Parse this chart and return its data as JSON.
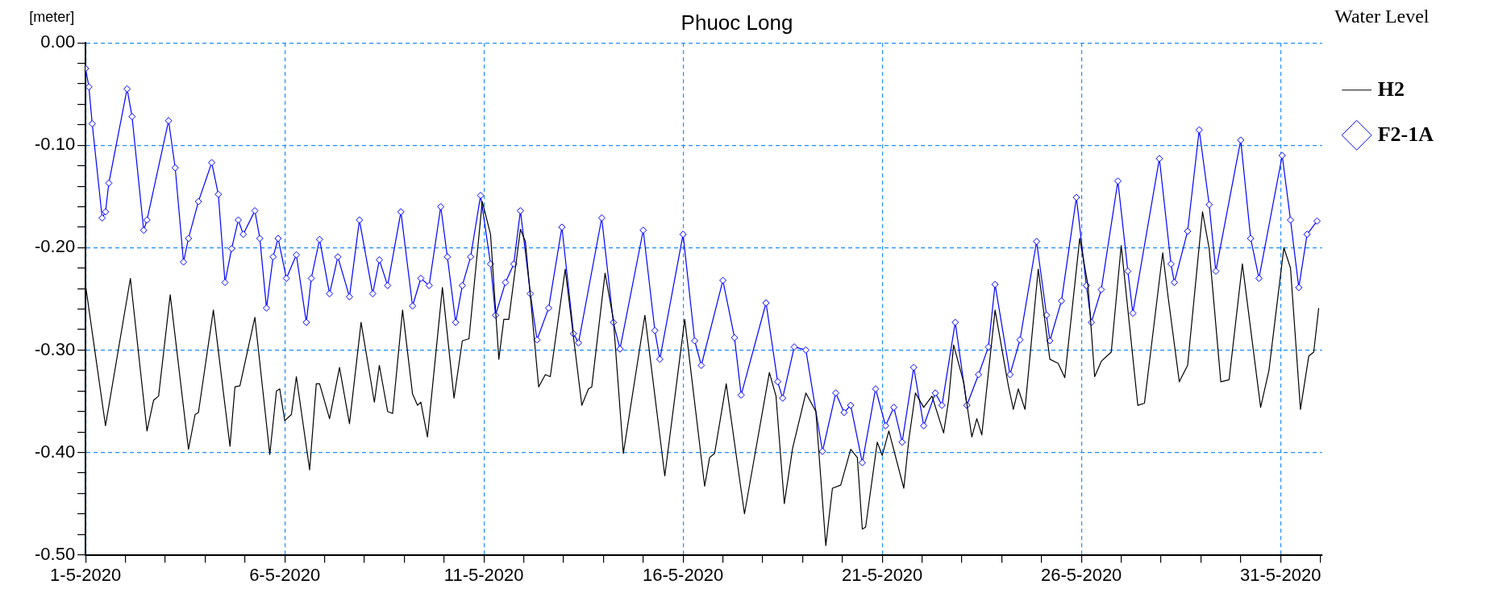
{
  "chart_data": {
    "type": "line",
    "title": "Phuoc Long",
    "ylabel": "[meter]",
    "legend_title": "Water Level",
    "legend": "right",
    "grid": true,
    "xlim": [
      "2020-05-01T00:00",
      "2020-06-01T01:00"
    ],
    "xticks": [
      {
        "value": "2020-05-01T00:00",
        "label": "1-5-2020"
      },
      {
        "value": "2020-05-02T00:00",
        "label": null
      },
      {
        "value": "2020-05-03T00:00",
        "label": null
      },
      {
        "value": "2020-05-04T00:00",
        "label": null
      },
      {
        "value": "2020-05-05T00:00",
        "label": null
      },
      {
        "value": "2020-05-06T00:00",
        "label": "6-5-2020"
      },
      {
        "value": "2020-05-07T00:00",
        "label": null
      },
      {
        "value": "2020-05-08T00:00",
        "label": null
      },
      {
        "value": "2020-05-09T00:00",
        "label": null
      },
      {
        "value": "2020-05-10T00:00",
        "label": null
      },
      {
        "value": "2020-05-11T00:00",
        "label": "11-5-2020"
      },
      {
        "value": "2020-05-12T00:00",
        "label": null
      },
      {
        "value": "2020-05-13T00:00",
        "label": null
      },
      {
        "value": "2020-05-14T00:00",
        "label": null
      },
      {
        "value": "2020-05-15T00:00",
        "label": null
      },
      {
        "value": "2020-05-16T00:00",
        "label": "16-5-2020"
      },
      {
        "value": "2020-05-17T00:00",
        "label": null
      },
      {
        "value": "2020-05-18T00:00",
        "label": null
      },
      {
        "value": "2020-05-19T00:00",
        "label": null
      },
      {
        "value": "2020-05-20T00:00",
        "label": null
      },
      {
        "value": "2020-05-21T00:00",
        "label": "21-5-2020"
      },
      {
        "value": "2020-05-22T00:00",
        "label": null
      },
      {
        "value": "2020-05-23T00:00",
        "label": null
      },
      {
        "value": "2020-05-24T00:00",
        "label": null
      },
      {
        "value": "2020-05-25T00:00",
        "label": null
      },
      {
        "value": "2020-05-26T00:00",
        "label": "26-5-2020"
      },
      {
        "value": "2020-05-27T00:00",
        "label": null
      },
      {
        "value": "2020-05-28T00:00",
        "label": null
      },
      {
        "value": "2020-05-29T00:00",
        "label": null
      },
      {
        "value": "2020-05-30T00:00",
        "label": null
      },
      {
        "value": "2020-05-31T00:00",
        "label": "31-5-2020"
      },
      {
        "value": "2020-06-01T00:00",
        "label": null
      }
    ],
    "ylim": [
      -0.5,
      0.0
    ],
    "yticks": [
      {
        "value": 0.0,
        "label": "0.00"
      },
      {
        "value": -0.02,
        "label": null
      },
      {
        "value": -0.04,
        "label": null
      },
      {
        "value": -0.06,
        "label": null
      },
      {
        "value": -0.08,
        "label": null
      },
      {
        "value": -0.1,
        "label": "-0.10"
      },
      {
        "value": -0.12,
        "label": null
      },
      {
        "value": -0.14,
        "label": null
      },
      {
        "value": -0.16,
        "label": null
      },
      {
        "value": -0.18,
        "label": null
      },
      {
        "value": -0.2,
        "label": "-0.20"
      },
      {
        "value": -0.22,
        "label": null
      },
      {
        "value": -0.24,
        "label": null
      },
      {
        "value": -0.26,
        "label": null
      },
      {
        "value": -0.28,
        "label": null
      },
      {
        "value": -0.3,
        "label": "-0.30"
      },
      {
        "value": -0.32,
        "label": null
      },
      {
        "value": -0.34,
        "label": null
      },
      {
        "value": -0.36,
        "label": null
      },
      {
        "value": -0.38,
        "label": null
      },
      {
        "value": -0.4,
        "label": "-0.40"
      },
      {
        "value": -0.42,
        "label": null
      },
      {
        "value": -0.44,
        "label": null
      },
      {
        "value": -0.46,
        "label": null
      },
      {
        "value": -0.48,
        "label": null
      },
      {
        "value": -0.5,
        "label": "-0.50"
      }
    ],
    "series": [
      {
        "name": "H2",
        "color": "#000000",
        "marker": "none",
        "x": [
          "2020-05-01T00:00",
          "2020-05-01T12:00",
          "2020-05-02T03:00",
          "2020-05-02T13:00",
          "2020-05-02T17:00",
          "2020-05-02T20:00",
          "2020-05-03T03:00",
          "2020-05-03T14:00",
          "2020-05-03T18:00",
          "2020-05-03T20:00",
          "2020-05-04T05:00",
          "2020-05-04T15:00",
          "2020-05-04T18:00",
          "2020-05-04T21:00",
          "2020-05-05T06:00",
          "2020-05-05T15:00",
          "2020-05-05T19:00",
          "2020-05-05T21:00",
          "2020-05-06T00:00",
          "2020-05-06T04:00",
          "2020-05-06T07:00",
          "2020-05-06T15:00",
          "2020-05-06T19:00",
          "2020-05-06T21:00",
          "2020-05-07T03:00",
          "2020-05-07T09:00",
          "2020-05-07T15:00",
          "2020-05-07T22:00",
          "2020-05-08T06:00",
          "2020-05-08T09:00",
          "2020-05-08T14:00",
          "2020-05-08T17:00",
          "2020-05-08T23:00",
          "2020-05-09T05:00",
          "2020-05-09T08:00",
          "2020-05-09T10:00",
          "2020-05-09T14:00",
          "2020-05-09T23:00",
          "2020-05-10T06:00",
          "2020-05-10T11:00",
          "2020-05-10T15:00",
          "2020-05-10T23:00",
          "2020-05-11T04:00",
          "2020-05-11T09:00",
          "2020-05-11T12:00",
          "2020-05-11T15:00",
          "2020-05-11T22:00",
          "2020-05-12T01:00",
          "2020-05-12T09:00",
          "2020-05-12T13:00",
          "2020-05-12T16:00",
          "2020-05-13T01:00",
          "2020-05-13T11:00",
          "2020-05-13T15:00",
          "2020-05-13T17:00",
          "2020-05-14T01:00",
          "2020-05-14T06:00",
          "2020-05-14T12:00",
          "2020-05-15T01:00",
          "2020-05-15T13:00",
          "2020-05-16T01:00",
          "2020-05-16T13:00",
          "2020-05-16T16:00",
          "2020-05-16T19:00",
          "2020-05-17T02:00",
          "2020-05-17T13:00",
          "2020-05-18T04:00",
          "2020-05-18T08:00",
          "2020-05-18T13:00",
          "2020-05-18T18:00",
          "2020-05-19T02:00",
          "2020-05-19T08:00",
          "2020-05-19T14:00",
          "2020-05-19T18:00",
          "2020-05-19T23:00",
          "2020-05-20T05:00",
          "2020-05-20T09:00",
          "2020-05-20T12:00",
          "2020-05-20T14:00",
          "2020-05-20T21:00",
          "2020-05-21T00:00",
          "2020-05-21T04:00",
          "2020-05-21T13:00",
          "2020-05-21T16:00",
          "2020-05-21T20:00",
          "2020-05-22T01:00",
          "2020-05-22T06:00",
          "2020-05-22T13:00",
          "2020-05-22T16:00",
          "2020-05-22T19:00",
          "2020-05-23T01:00",
          "2020-05-23T06:00",
          "2020-05-23T09:00",
          "2020-05-23T12:00",
          "2020-05-23T20:00",
          "2020-05-24T04:00",
          "2020-05-24T07:00",
          "2020-05-24T10:00",
          "2020-05-24T14:00",
          "2020-05-24T22:00",
          "2020-05-25T05:00",
          "2020-05-25T10:00",
          "2020-05-25T14:00",
          "2020-05-25T23:00",
          "2020-05-26T04:00",
          "2020-05-26T08:00",
          "2020-05-26T12:00",
          "2020-05-26T18:00",
          "2020-05-27T00:00",
          "2020-05-27T10:00",
          "2020-05-27T14:00",
          "2020-05-28T01:00",
          "2020-05-28T04:00",
          "2020-05-28T11:00",
          "2020-05-28T16:00",
          "2020-05-29T01:00",
          "2020-05-29T05:00",
          "2020-05-29T12:00",
          "2020-05-29T17:00",
          "2020-05-30T01:00",
          "2020-05-30T12:00",
          "2020-05-30T17:00",
          "2020-05-31T02:00",
          "2020-05-31T06:00",
          "2020-05-31T12:00",
          "2020-05-31T17:00",
          "2020-05-31T20:00",
          "2020-05-31T23:00"
        ],
        "values": [
          -0.237,
          -0.374,
          -0.23,
          -0.379,
          -0.349,
          -0.345,
          -0.246,
          -0.397,
          -0.363,
          -0.361,
          -0.261,
          -0.394,
          -0.336,
          -0.335,
          -0.268,
          -0.402,
          -0.34,
          -0.338,
          -0.369,
          -0.363,
          -0.326,
          -0.417,
          -0.333,
          -0.333,
          -0.367,
          -0.317,
          -0.372,
          -0.273,
          -0.351,
          -0.315,
          -0.36,
          -0.362,
          -0.261,
          -0.343,
          -0.354,
          -0.351,
          -0.385,
          -0.239,
          -0.347,
          -0.291,
          -0.289,
          -0.155,
          -0.187,
          -0.309,
          -0.27,
          -0.27,
          -0.182,
          -0.194,
          -0.336,
          -0.324,
          -0.326,
          -0.221,
          -0.354,
          -0.338,
          -0.336,
          -0.225,
          -0.27,
          -0.401,
          -0.266,
          -0.423,
          -0.27,
          -0.433,
          -0.405,
          -0.401,
          -0.333,
          -0.46,
          -0.322,
          -0.345,
          -0.45,
          -0.396,
          -0.342,
          -0.36,
          -0.491,
          -0.435,
          -0.432,
          -0.397,
          -0.405,
          -0.475,
          -0.473,
          -0.39,
          -0.403,
          -0.379,
          -0.435,
          -0.388,
          -0.342,
          -0.356,
          -0.345,
          -0.381,
          -0.349,
          -0.295,
          -0.331,
          -0.385,
          -0.367,
          -0.383,
          -0.261,
          -0.335,
          -0.358,
          -0.338,
          -0.358,
          -0.221,
          -0.309,
          -0.313,
          -0.327,
          -0.191,
          -0.237,
          -0.326,
          -0.311,
          -0.302,
          -0.198,
          -0.354,
          -0.352,
          -0.205,
          -0.245,
          -0.331,
          -0.315,
          -0.165,
          -0.201,
          -0.331,
          -0.329,
          -0.216,
          -0.356,
          -0.32,
          -0.2,
          -0.22,
          -0.358,
          -0.306,
          -0.302,
          -0.259
        ]
      },
      {
        "name": "F2-1A",
        "color": "#0000ff",
        "marker": "diamond",
        "x": [
          "2020-05-01T00:00",
          "2020-05-01T02:00",
          "2020-05-01T04:00",
          "2020-05-01T10:00",
          "2020-05-01T12:00",
          "2020-05-01T14:00",
          "2020-05-02T01:00",
          "2020-05-02T04:00",
          "2020-05-02T11:00",
          "2020-05-02T13:00",
          "2020-05-03T02:00",
          "2020-05-03T06:00",
          "2020-05-03T11:00",
          "2020-05-03T14:00",
          "2020-05-03T20:00",
          "2020-05-04T04:00",
          "2020-05-04T08:00",
          "2020-05-04T12:00",
          "2020-05-04T16:00",
          "2020-05-04T20:00",
          "2020-05-04T23:00",
          "2020-05-05T06:00",
          "2020-05-05T09:00",
          "2020-05-05T13:00",
          "2020-05-05T17:00",
          "2020-05-05T20:00",
          "2020-05-06T01:00",
          "2020-05-06T07:00",
          "2020-05-06T13:00",
          "2020-05-06T16:00",
          "2020-05-06T21:00",
          "2020-05-07T03:00",
          "2020-05-07T08:00",
          "2020-05-07T15:00",
          "2020-05-07T21:00",
          "2020-05-08T05:00",
          "2020-05-08T09:00",
          "2020-05-08T14:00",
          "2020-05-08T22:00",
          "2020-05-09T05:00",
          "2020-05-09T10:00",
          "2020-05-09T15:00",
          "2020-05-09T22:00",
          "2020-05-10T02:00",
          "2020-05-10T07:00",
          "2020-05-10T11:00",
          "2020-05-10T16:00",
          "2020-05-10T22:00",
          "2020-05-11T04:00",
          "2020-05-11T07:00",
          "2020-05-11T13:00",
          "2020-05-11T18:00",
          "2020-05-11T22:00",
          "2020-05-12T04:00",
          "2020-05-12T08:00",
          "2020-05-12T15:00",
          "2020-05-12T23:00",
          "2020-05-13T06:00",
          "2020-05-13T09:00",
          "2020-05-13T23:00",
          "2020-05-14T06:00",
          "2020-05-14T10:00",
          "2020-05-15T00:00",
          "2020-05-15T07:00",
          "2020-05-15T10:00",
          "2020-05-16T00:00",
          "2020-05-16T07:00",
          "2020-05-16T11:00",
          "2020-05-17T00:00",
          "2020-05-17T07:00",
          "2020-05-17T11:00",
          "2020-05-18T02:00",
          "2020-05-18T09:00",
          "2020-05-18T12:00",
          "2020-05-18T19:00",
          "2020-05-19T02:00",
          "2020-05-19T12:00",
          "2020-05-19T20:00",
          "2020-05-20T01:00",
          "2020-05-20T05:00",
          "2020-05-20T12:00",
          "2020-05-20T20:00",
          "2020-05-21T02:00",
          "2020-05-21T07:00",
          "2020-05-21T12:00",
          "2020-05-21T19:00",
          "2020-05-22T01:00",
          "2020-05-22T08:00",
          "2020-05-22T12:00",
          "2020-05-22T20:00",
          "2020-05-23T03:00",
          "2020-05-23T10:00",
          "2020-05-23T16:00",
          "2020-05-23T20:00",
          "2020-05-24T05:00",
          "2020-05-24T11:00",
          "2020-05-24T21:00",
          "2020-05-25T03:00",
          "2020-05-25T05:00",
          "2020-05-25T12:00",
          "2020-05-25T21:00",
          "2020-05-26T03:00",
          "2020-05-26T06:00",
          "2020-05-26T12:00",
          "2020-05-26T22:00",
          "2020-05-27T04:00",
          "2020-05-27T07:00",
          "2020-05-27T23:00",
          "2020-05-28T06:00",
          "2020-05-28T08:00",
          "2020-05-28T16:00",
          "2020-05-28T23:00",
          "2020-05-29T05:00",
          "2020-05-29T09:00",
          "2020-05-30T00:00",
          "2020-05-30T06:00",
          "2020-05-30T11:00",
          "2020-05-31T01:00",
          "2020-05-31T06:00",
          "2020-05-31T11:00",
          "2020-05-31T16:00",
          "2020-05-31T22:00"
        ],
        "values": [
          -0.025,
          -0.043,
          -0.079,
          -0.171,
          -0.165,
          -0.137,
          -0.045,
          -0.072,
          -0.183,
          -0.173,
          -0.076,
          -0.122,
          -0.214,
          -0.191,
          -0.155,
          -0.117,
          -0.148,
          -0.234,
          -0.201,
          -0.173,
          -0.187,
          -0.164,
          -0.191,
          -0.259,
          -0.209,
          -0.191,
          -0.23,
          -0.207,
          -0.273,
          -0.23,
          -0.192,
          -0.245,
          -0.209,
          -0.248,
          -0.173,
          -0.245,
          -0.212,
          -0.237,
          -0.165,
          -0.257,
          -0.23,
          -0.237,
          -0.16,
          -0.209,
          -0.273,
          -0.237,
          -0.209,
          -0.149,
          -0.216,
          -0.266,
          -0.234,
          -0.216,
          -0.164,
          -0.245,
          -0.29,
          -0.259,
          -0.18,
          -0.284,
          -0.293,
          -0.171,
          -0.273,
          -0.299,
          -0.183,
          -0.281,
          -0.309,
          -0.187,
          -0.291,
          -0.315,
          -0.232,
          -0.288,
          -0.344,
          -0.254,
          -0.331,
          -0.347,
          -0.297,
          -0.3,
          -0.399,
          -0.342,
          -0.361,
          -0.354,
          -0.41,
          -0.338,
          -0.374,
          -0.356,
          -0.39,
          -0.317,
          -0.374,
          -0.342,
          -0.354,
          -0.273,
          -0.354,
          -0.324,
          -0.297,
          -0.236,
          -0.324,
          -0.29,
          -0.194,
          -0.266,
          -0.291,
          -0.252,
          -0.151,
          -0.237,
          -0.273,
          -0.241,
          -0.135,
          -0.223,
          -0.264,
          -0.113,
          -0.216,
          -0.234,
          -0.184,
          -0.085,
          -0.158,
          -0.223,
          -0.095,
          -0.191,
          -0.23,
          -0.11,
          -0.173,
          -0.239,
          -0.187,
          -0.174
        ]
      }
    ]
  }
}
